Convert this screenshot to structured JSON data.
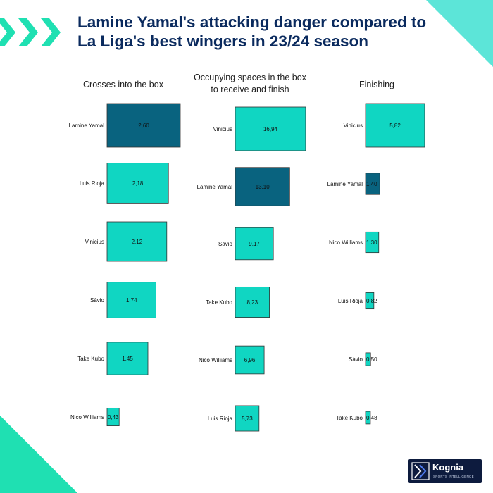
{
  "header": {
    "title": "Lamine Yamal's attacking danger compared to La Liga's best wingers in 23/24 season"
  },
  "colors": {
    "highlight": "#09637f",
    "default": "#10d6c2",
    "title": "#0a2a5e",
    "border": "#333333"
  },
  "chart_data": [
    {
      "type": "bar",
      "title": "Crosses into the box",
      "categories": [
        "Lamine Yamal",
        "Luis Rioja",
        "Vinicius",
        "Sàvio",
        "Take Kubo",
        "Nico Williams"
      ],
      "values": [
        2.6,
        2.18,
        2.12,
        1.74,
        1.45,
        0.43
      ],
      "labels": [
        "2,60",
        "2,18",
        "2,12",
        "1,74",
        "1,45",
        "0,43"
      ],
      "highlight": "Lamine Yamal"
    },
    {
      "type": "bar",
      "title": "Occupying spaces in the box to receive and finish",
      "categories": [
        "Vinicius",
        "Lamine Yamal",
        "Sàvio",
        "Take Kubo",
        "Nico Williams",
        "Luis Rioja"
      ],
      "values": [
        16.94,
        13.1,
        9.17,
        8.23,
        6.96,
        5.73
      ],
      "labels": [
        "16,94",
        "13,10",
        "9,17",
        "8,23",
        "6,96",
        "5,73"
      ],
      "highlight": "Lamine Yamal"
    },
    {
      "type": "bar",
      "title": "Finishing",
      "categories": [
        "Vinicius",
        "Lamine Yamal",
        "Nico Williams",
        "Luis Rioja",
        "Sàvio",
        "Take Kubo"
      ],
      "values": [
        5.82,
        1.4,
        1.3,
        0.82,
        0.5,
        0.48
      ],
      "labels": [
        "5,82",
        "1,40",
        "1,30",
        "0,82",
        "0,50",
        "0,48"
      ],
      "highlight": "Lamine Yamal"
    }
  ],
  "logo": {
    "name": "Kognia",
    "subtitle": "SPORTS INTELLIGENCE"
  }
}
